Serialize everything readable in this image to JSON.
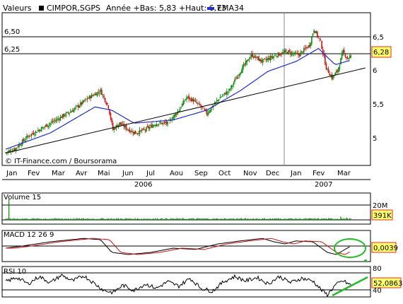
{
  "header": {
    "label": "Valeurs",
    "symbol": "CIMPOR,SGPS",
    "range_text": "Année +Bas: 5,83 +Haut: 6,73",
    "ema_label": "EMA34",
    "ema_color": "#1f2fd0"
  },
  "colors": {
    "up": "#0a8a0a",
    "down": "#d01010",
    "ema": "#1f2fd0",
    "macd": "#000000",
    "signal": "#d01010",
    "annotation": "#22bb22",
    "price_tag_bg": "#ffff66",
    "price_tag_border": "#e03030"
  },
  "watermark": "© IT-Finance.com / Boursorama",
  "chart_data": [
    {
      "type": "candlestick",
      "name": "price",
      "x_labels": [
        "Jan",
        "Fev",
        "Mar",
        "Avr",
        "Mai",
        "Jun",
        "Jul",
        "Aou",
        "Sep",
        "Oct",
        "Nov",
        "Dec",
        "Jan",
        "Fev",
        "Mar"
      ],
      "x_years": [
        "2006",
        "2007"
      ],
      "y_ticks": [
        "6,5",
        "6",
        "5,5",
        "5"
      ],
      "y_tick_values": [
        6.5,
        6,
        5.5,
        5
      ],
      "ylim": [
        4.6,
        6.95
      ],
      "ref_lines": [
        {
          "label": "6,50",
          "value": 6.5
        },
        {
          "label": "6,25",
          "value": 6.25
        }
      ],
      "current_value": "6,28",
      "current_value_num": 6.28,
      "close_keypoints": [
        [
          0,
          4.8
        ],
        [
          8,
          4.85
        ],
        [
          20,
          5.05
        ],
        [
          40,
          5.25
        ],
        [
          60,
          5.45
        ],
        [
          75,
          5.65
        ],
        [
          85,
          5.75
        ],
        [
          92,
          5.5
        ],
        [
          96,
          5.15
        ],
        [
          102,
          5.25
        ],
        [
          110,
          5.15
        ],
        [
          116,
          5.1
        ],
        [
          125,
          5.15
        ],
        [
          135,
          5.25
        ],
        [
          145,
          5.25
        ],
        [
          155,
          5.45
        ],
        [
          162,
          5.65
        ],
        [
          168,
          5.6
        ],
        [
          175,
          5.5
        ],
        [
          180,
          5.4
        ],
        [
          192,
          5.65
        ],
        [
          200,
          5.75
        ],
        [
          210,
          6.05
        ],
        [
          220,
          6.3
        ],
        [
          230,
          6.2
        ],
        [
          242,
          6.3
        ],
        [
          252,
          6.35
        ],
        [
          262,
          6.3
        ],
        [
          272,
          6.45
        ],
        [
          276,
          6.7
        ],
        [
          282,
          6.5
        ],
        [
          287,
          6.1
        ],
        [
          292,
          5.95
        ],
        [
          297,
          6.05
        ],
        [
          302,
          6.35
        ],
        [
          306,
          6.25
        ],
        [
          309,
          6.28
        ]
      ],
      "ema_keypoints": [
        [
          0,
          4.85
        ],
        [
          40,
          5.1
        ],
        [
          80,
          5.5
        ],
        [
          95,
          5.45
        ],
        [
          115,
          5.25
        ],
        [
          150,
          5.3
        ],
        [
          180,
          5.45
        ],
        [
          210,
          5.75
        ],
        [
          235,
          6.05
        ],
        [
          260,
          6.2
        ],
        [
          280,
          6.4
        ],
        [
          295,
          6.15
        ],
        [
          309,
          6.22
        ]
      ],
      "trendline": {
        "x0": 0,
        "y0": 4.79,
        "x1": 322,
        "y1": 6.1
      }
    },
    {
      "type": "bar",
      "name": "Volume 15",
      "title": "Volume 15",
      "y_ticks": [
        "20M"
      ],
      "current_value": "391K",
      "spikes": [
        [
          3,
          0.95
        ],
        [
          140,
          0.08
        ],
        [
          190,
          0.06
        ],
        [
          300,
          0.15
        ],
        [
          305,
          0.1
        ]
      ]
    },
    {
      "type": "line",
      "name": "MACD",
      "title": "MACD 12 26 9",
      "current_value": "0,0039",
      "macd_keypoints": [
        [
          0,
          -0.05
        ],
        [
          15,
          0.0
        ],
        [
          40,
          0.1
        ],
        [
          70,
          0.18
        ],
        [
          85,
          0.15
        ],
        [
          95,
          -0.15
        ],
        [
          110,
          -0.2
        ],
        [
          130,
          -0.15
        ],
        [
          150,
          -0.05
        ],
        [
          170,
          -0.08
        ],
        [
          190,
          0.05
        ],
        [
          210,
          0.12
        ],
        [
          230,
          0.18
        ],
        [
          240,
          0.1
        ],
        [
          250,
          0.05
        ],
        [
          260,
          0.12
        ],
        [
          275,
          0.1
        ],
        [
          288,
          -0.15
        ],
        [
          296,
          -0.2
        ],
        [
          309,
          0.0
        ]
      ],
      "ylim": [
        -0.3,
        0.3
      ]
    },
    {
      "type": "line",
      "name": "RSI",
      "title": "RSI 10",
      "y_ticks": [
        "80",
        "40"
      ],
      "y_tick_values": [
        80,
        40
      ],
      "ylim": [
        25,
        95
      ],
      "current_value": "52,0863",
      "rsi_keypoints": [
        [
          0,
          60
        ],
        [
          10,
          70
        ],
        [
          20,
          55
        ],
        [
          30,
          72
        ],
        [
          40,
          58
        ],
        [
          50,
          75
        ],
        [
          60,
          62
        ],
        [
          70,
          74
        ],
        [
          80,
          55
        ],
        [
          88,
          40
        ],
        [
          96,
          35
        ],
        [
          105,
          52
        ],
        [
          115,
          40
        ],
        [
          125,
          55
        ],
        [
          135,
          45
        ],
        [
          145,
          60
        ],
        [
          155,
          50
        ],
        [
          165,
          68
        ],
        [
          175,
          45
        ],
        [
          185,
          38
        ],
        [
          195,
          60
        ],
        [
          205,
          72
        ],
        [
          215,
          62
        ],
        [
          225,
          70
        ],
        [
          235,
          55
        ],
        [
          245,
          72
        ],
        [
          255,
          58
        ],
        [
          265,
          68
        ],
        [
          275,
          62
        ],
        [
          283,
          40
        ],
        [
          288,
          30
        ],
        [
          295,
          52
        ],
        [
          302,
          62
        ],
        [
          309,
          52
        ]
      ]
    }
  ]
}
